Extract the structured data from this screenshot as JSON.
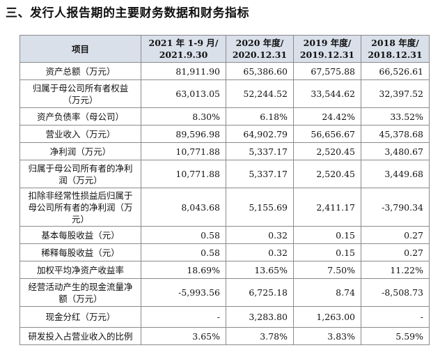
{
  "section_title": "三、发行人报告期的主要财务数据和财务指标",
  "table": {
    "headers": [
      "项目",
      "2021 年 1-9 月/2021.9.30",
      "2020 年度/2020.12.31",
      "2019 年度/2019.12.31",
      "2018 年度/2018.12.31"
    ],
    "rows": [
      {
        "label": "资产总额（万元）",
        "values": [
          "81,911.90",
          "65,386.60",
          "67,575.88",
          "66,526.61"
        ]
      },
      {
        "label": "归属于母公司所有者权益（万元）",
        "values": [
          "63,013.05",
          "52,244.52",
          "33,544.62",
          "32,397.52"
        ]
      },
      {
        "label": "资产负债率（母公司）",
        "values": [
          "8.30%",
          "6.18%",
          "24.42%",
          "33.52%"
        ]
      },
      {
        "label": "营业收入（万元）",
        "values": [
          "89,596.98",
          "64,902.79",
          "56,656.67",
          "45,378.68"
        ]
      },
      {
        "label": "净利润（万元）",
        "values": [
          "10,771.88",
          "5,337.17",
          "2,520.45",
          "3,480.67"
        ]
      },
      {
        "label": "归属于母公司所有者的净利润（万元）",
        "values": [
          "10,771.88",
          "5,337.17",
          "2,520.45",
          "3,449.68"
        ]
      },
      {
        "label": "扣除非经常性损益后归属于母公司所有者的净利润（万元）",
        "values": [
          "8,043.68",
          "5,155.69",
          "2,411.17",
          "-3,790.34"
        ]
      },
      {
        "label": "基本每股收益（元）",
        "values": [
          "0.58",
          "0.32",
          "0.15",
          "0.27"
        ]
      },
      {
        "label": "稀释每股收益（元）",
        "values": [
          "0.58",
          "0.32",
          "0.15",
          "0.27"
        ]
      },
      {
        "label": "加权平均净资产收益率",
        "values": [
          "18.69%",
          "13.65%",
          "7.50%",
          "11.22%"
        ]
      },
      {
        "label": "经营活动产生的现金流量净额（万元）",
        "values": [
          "-5,993.56",
          "6,725.18",
          "8.74",
          "-8,508.73"
        ]
      },
      {
        "label": "现金分红（万元）",
        "values": [
          "-",
          "3,283.80",
          "1,263.00",
          "-"
        ]
      },
      {
        "label": "研发投入占营业收入的比例",
        "values": [
          "3.65%",
          "3.78%",
          "3.83%",
          "5.59%"
        ]
      }
    ]
  }
}
